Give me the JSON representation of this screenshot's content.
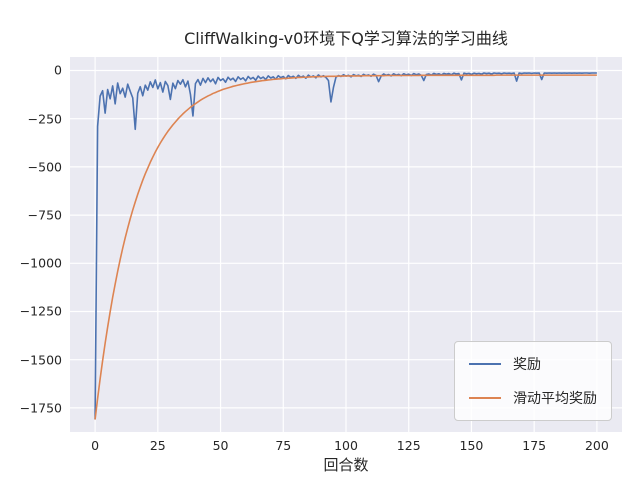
{
  "chart_data": {
    "type": "line",
    "title": "CliffWalking-v0环境下Q学习算法的学习曲线",
    "xlabel": "回合数",
    "ylabel": "",
    "xlim": [
      -10,
      210
    ],
    "ylim": [
      -1875,
      70
    ],
    "xticks": [
      0,
      25,
      50,
      75,
      100,
      125,
      150,
      175,
      200
    ],
    "yticks": [
      0,
      -250,
      -500,
      -750,
      -1000,
      -1250,
      -1500,
      -1750
    ],
    "grid": true,
    "legend_position": "lower right",
    "colors": {
      "reward": "#4c72b0",
      "moving_avg": "#dd8452",
      "axes_bg": "#eaeaf2",
      "grid": "#ffffff",
      "text": "#262626"
    },
    "series": [
      {
        "name": "奖励",
        "color_key": "reward",
        "x_start": 0,
        "x_step": 1,
        "values": [
          -1810,
          -290,
          -133,
          -105,
          -221,
          -99,
          -147,
          -80,
          -173,
          -65,
          -120,
          -92,
          -138,
          -71,
          -108,
          -142,
          -305,
          -118,
          -84,
          -131,
          -76,
          -102,
          -59,
          -88,
          -49,
          -95,
          -63,
          -112,
          -57,
          -78,
          -150,
          -66,
          -94,
          -52,
          -71,
          -48,
          -85,
          -55,
          -124,
          -236,
          -68,
          -47,
          -76,
          -41,
          -63,
          -38,
          -58,
          -44,
          -69,
          -36,
          -52,
          -43,
          -61,
          -35,
          -49,
          -40,
          -57,
          -33,
          -46,
          -38,
          -54,
          -31,
          -44,
          -36,
          -51,
          -29,
          -42,
          -34,
          -47,
          -28,
          -39,
          -33,
          -45,
          -27,
          -37,
          -31,
          -43,
          -26,
          -36,
          -30,
          -41,
          -25,
          -35,
          -29,
          -40,
          -24,
          -34,
          -28,
          -38,
          -23,
          -33,
          -27,
          -36,
          -52,
          -163,
          -88,
          -35,
          -26,
          -31,
          -22,
          -29,
          -25,
          -33,
          -21,
          -28,
          -24,
          -31,
          -20,
          -27,
          -23,
          -30,
          -19,
          -26,
          -58,
          -29,
          -18,
          -25,
          -21,
          -28,
          -17,
          -24,
          -20,
          -27,
          -17,
          -23,
          -19,
          -26,
          -16,
          -22,
          -18,
          -25,
          -52,
          -21,
          -18,
          -24,
          -15,
          -20,
          -17,
          -23,
          -15,
          -19,
          -16,
          -22,
          -14,
          -18,
          -16,
          -49,
          -14,
          -17,
          -15,
          -20,
          -14,
          -17,
          -15,
          -19,
          -13,
          -16,
          -14,
          -18,
          -13,
          -15,
          -14,
          -17,
          -13,
          -15,
          -14,
          -16,
          -13,
          -55,
          -13,
          -16,
          -13,
          -14,
          -13,
          -15,
          -13,
          -14,
          -13,
          -47,
          -13,
          -14,
          -13,
          -14,
          -13,
          -14,
          -13,
          -14,
          -13,
          -14,
          -13,
          -14,
          -13,
          -14,
          -13,
          -14,
          -13,
          -13,
          -14,
          -13,
          -13,
          -13
        ]
      },
      {
        "name": "滑动平均奖励",
        "color_key": "moving_avg",
        "x_start": 0,
        "x_step": 1,
        "values": [
          -1810,
          -1702,
          -1600,
          -1505,
          -1415,
          -1331,
          -1252,
          -1177,
          -1108,
          -1042,
          -980,
          -922,
          -868,
          -817,
          -769,
          -724,
          -682,
          -642,
          -605,
          -569,
          -536,
          -506,
          -476,
          -449,
          -423,
          -399,
          -376,
          -355,
          -335,
          -316,
          -299,
          -282,
          -267,
          -252,
          -238,
          -225,
          -213,
          -202,
          -191,
          -181,
          -172,
          -163,
          -154,
          -146,
          -139,
          -132,
          -126,
          -119,
          -114,
          -108,
          -103,
          -98,
          -94,
          -90,
          -86,
          -82,
          -79,
          -76,
          -73,
          -70,
          -67,
          -65,
          -62,
          -60,
          -58,
          -56,
          -54,
          -52,
          -51,
          -49,
          -48,
          -46,
          -45,
          -44,
          -43,
          -41,
          -41,
          -40,
          -39,
          -38,
          -37,
          -36,
          -36,
          -35,
          -35,
          -34,
          -33,
          -33,
          -32,
          -32,
          -31,
          -31,
          -31,
          -30,
          -30,
          -30,
          -30,
          -29,
          -29,
          -29,
          -28,
          -28,
          -28,
          -28,
          -28,
          -28,
          -28,
          -27,
          -27,
          -27,
          -27,
          -27,
          -27,
          -27,
          -27,
          -27,
          -26,
          -26,
          -26,
          -26,
          -26,
          -26,
          -26,
          -26,
          -26,
          -26,
          -26,
          -26,
          -26,
          -26,
          -25,
          -25,
          -25,
          -25,
          -25,
          -25,
          -25,
          -25,
          -25,
          -25,
          -25,
          -25,
          -25,
          -25,
          -25,
          -25,
          -25,
          -25,
          -25,
          -25,
          -25,
          -25,
          -25,
          -25,
          -25,
          -25,
          -25,
          -25,
          -25,
          -25,
          -24,
          -24,
          -24,
          -24,
          -24,
          -24,
          -24,
          -24,
          -24,
          -24,
          -24,
          -24,
          -24,
          -24,
          -24,
          -24,
          -24,
          -24,
          -24,
          -24,
          -24,
          -24,
          -24,
          -24,
          -24,
          -24,
          -24,
          -24,
          -24,
          -24,
          -24,
          -24,
          -24,
          -24,
          -24,
          -24,
          -24,
          -24,
          -24,
          -24,
          -24
        ]
      }
    ]
  }
}
